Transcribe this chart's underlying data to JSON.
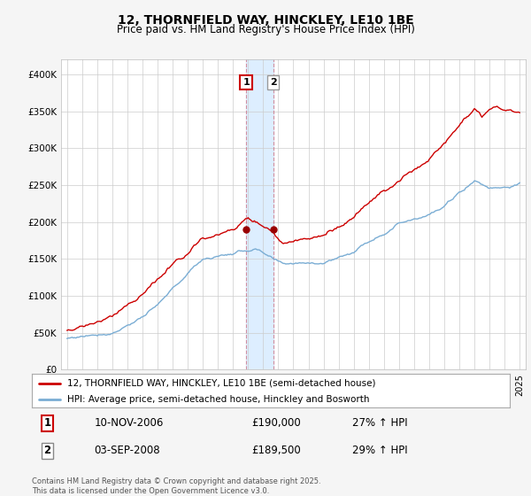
{
  "title1": "12, THORNFIELD WAY, HINCKLEY, LE10 1BE",
  "title2": "Price paid vs. HM Land Registry's House Price Index (HPI)",
  "legend_line1": "12, THORNFIELD WAY, HINCKLEY, LE10 1BE (semi-detached house)",
  "legend_line2": "HPI: Average price, semi-detached house, Hinckley and Bosworth",
  "transaction1_date": "10-NOV-2006",
  "transaction1_price": "£190,000",
  "transaction1_hpi": "27% ↑ HPI",
  "transaction2_date": "03-SEP-2008",
  "transaction2_price": "£189,500",
  "transaction2_hpi": "29% ↑ HPI",
  "footer": "Contains HM Land Registry data © Crown copyright and database right 2025.\nThis data is licensed under the Open Government Licence v3.0.",
  "red_color": "#cc0000",
  "blue_color": "#7aadd4",
  "vline1_x": 2006.87,
  "vline2_x": 2008.67,
  "highlight_color": "#ddeeff",
  "bg_color": "#f5f5f5",
  "ylim_min": 0,
  "ylim_max": 420000,
  "xlim_min": 1994.6,
  "xlim_max": 2025.4
}
